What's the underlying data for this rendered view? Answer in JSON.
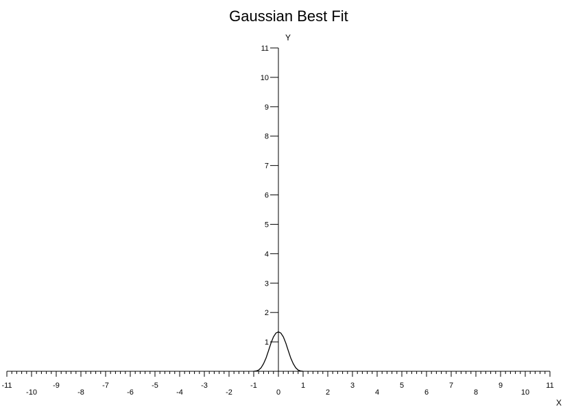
{
  "chart_data": {
    "type": "line",
    "title": "Gaussian Best Fit",
    "xlabel": "X",
    "ylabel": "Y",
    "xlim": [
      -11,
      11
    ],
    "ylim": [
      0,
      11
    ],
    "x_ticks": [
      -11,
      -10,
      -9,
      -8,
      -7,
      -6,
      -5,
      -4,
      -3,
      -2,
      -1,
      0,
      1,
      2,
      3,
      4,
      5,
      6,
      7,
      8,
      9,
      10,
      11
    ],
    "y_ticks": [
      1,
      2,
      3,
      4,
      5,
      6,
      7,
      8,
      9,
      10,
      11
    ],
    "grid": false,
    "series": [
      {
        "x": [
          -1.0,
          -0.9,
          -0.8,
          -0.7,
          -0.6,
          -0.5,
          -0.4,
          -0.3,
          -0.2,
          -0.1,
          0.0,
          0.1,
          0.2,
          0.3,
          0.4,
          0.5,
          0.6,
          0.7,
          0.8,
          0.9,
          1.0
        ],
        "y": [
          0.0,
          0.01,
          0.04,
          0.12,
          0.26,
          0.45,
          0.7,
          0.96,
          1.17,
          1.3,
          1.34,
          1.3,
          1.17,
          0.96,
          0.7,
          0.45,
          0.26,
          0.12,
          0.04,
          0.01,
          0.0
        ]
      }
    ]
  }
}
